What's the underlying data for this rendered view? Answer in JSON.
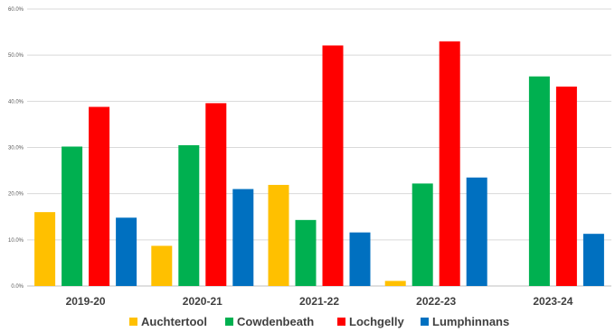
{
  "chart_data": {
    "type": "bar",
    "categories": [
      "2019-20",
      "2020-21",
      "2021-22",
      "2022-23",
      "2023-24"
    ],
    "series": [
      {
        "name": "Auchtertool",
        "color": "#FFC000",
        "values": [
          0.16,
          0.087,
          0.219,
          0.011,
          null
        ]
      },
      {
        "name": "Cowdenbeath",
        "color": "#00B050",
        "values": [
          0.302,
          0.305,
          0.143,
          0.222,
          0.454
        ]
      },
      {
        "name": "Lochgelly",
        "color": "#FF0000",
        "values": [
          0.388,
          0.396,
          0.521,
          0.53,
          0.432
        ]
      },
      {
        "name": "Lumphinnans",
        "color": "#0070C0",
        "values": [
          0.148,
          0.21,
          0.116,
          0.235,
          0.113
        ]
      }
    ],
    "y_ticks": [
      "0.0%",
      "10.0%",
      "20.0%",
      "30.0%",
      "40.0%",
      "50.0%",
      "60.0%"
    ],
    "ylim": [
      0,
      0.6
    ],
    "grid": true,
    "legend_position": "bottom"
  }
}
